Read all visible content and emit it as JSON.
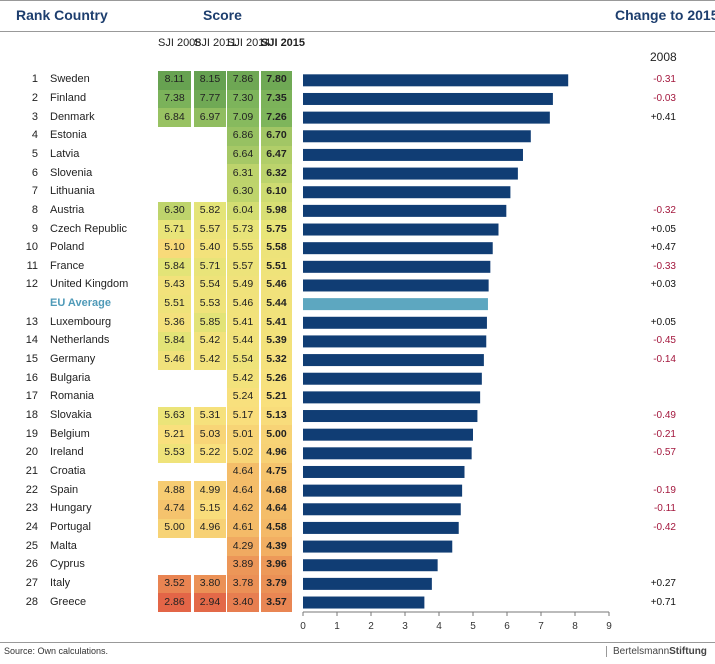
{
  "header": {
    "rank_country": "Rank Country",
    "score": "Score",
    "change": "Change to 2015",
    "change_year": "2008"
  },
  "columns": [
    "SJI 2008",
    "SJI 2011",
    "SJI 2014",
    "SJI 2015"
  ],
  "source": "Source: Own calculations.",
  "logo": {
    "left": "Bertelsmann",
    "right": "Stiftung"
  },
  "colors": {
    "bar": "#103d74",
    "eu_bar": "#5da7c0",
    "negative": "#a3173d",
    "title": "#1d3e6e"
  },
  "chart_data": {
    "type": "bar",
    "orientation": "horizontal",
    "xlim": [
      0,
      9
    ],
    "xticks": [
      0,
      1,
      2,
      3,
      4,
      5,
      6,
      7,
      8,
      9
    ],
    "grid": false,
    "rows": [
      {
        "rank": "1",
        "country": "Sweden",
        "sji2008": "8.11",
        "sji2011": "8.15",
        "sji2014": "7.86",
        "sji2015": "7.80",
        "value": 7.8,
        "change": "-0.31"
      },
      {
        "rank": "2",
        "country": "Finland",
        "sji2008": "7.38",
        "sji2011": "7.77",
        "sji2014": "7.30",
        "sji2015": "7.35",
        "value": 7.35,
        "change": "-0.03"
      },
      {
        "rank": "3",
        "country": "Denmark",
        "sji2008": "6.84",
        "sji2011": "6.97",
        "sji2014": "7.09",
        "sji2015": "7.26",
        "value": 7.26,
        "change": "+0.41"
      },
      {
        "rank": "4",
        "country": "Estonia",
        "sji2008": "",
        "sji2011": "",
        "sji2014": "6.86",
        "sji2015": "6.70",
        "value": 6.7,
        "change": ""
      },
      {
        "rank": "5",
        "country": "Latvia",
        "sji2008": "",
        "sji2011": "",
        "sji2014": "6.64",
        "sji2015": "6.47",
        "value": 6.47,
        "change": ""
      },
      {
        "rank": "6",
        "country": "Slovenia",
        "sji2008": "",
        "sji2011": "",
        "sji2014": "6.31",
        "sji2015": "6.32",
        "value": 6.32,
        "change": ""
      },
      {
        "rank": "7",
        "country": "Lithuania",
        "sji2008": "",
        "sji2011": "",
        "sji2014": "6.30",
        "sji2015": "6.10",
        "value": 6.1,
        "change": ""
      },
      {
        "rank": "8",
        "country": "Austria",
        "sji2008": "6.30",
        "sji2011": "5.82",
        "sji2014": "6.04",
        "sji2015": "5.98",
        "value": 5.98,
        "change": "-0.32"
      },
      {
        "rank": "9",
        "country": "Czech Republic",
        "sji2008": "5.71",
        "sji2011": "5.57",
        "sji2014": "5.73",
        "sji2015": "5.75",
        "value": 5.75,
        "change": "+0.05"
      },
      {
        "rank": "10",
        "country": "Poland",
        "sji2008": "5.10",
        "sji2011": "5.40",
        "sji2014": "5.55",
        "sji2015": "5.58",
        "value": 5.58,
        "change": "+0.47"
      },
      {
        "rank": "11",
        "country": "France",
        "sji2008": "5.84",
        "sji2011": "5.71",
        "sji2014": "5.57",
        "sji2015": "5.51",
        "value": 5.51,
        "change": "-0.33"
      },
      {
        "rank": "12",
        "country": "United Kingdom",
        "sji2008": "5.43",
        "sji2011": "5.54",
        "sji2014": "5.49",
        "sji2015": "5.46",
        "value": 5.46,
        "change": "+0.03"
      },
      {
        "rank": "",
        "country": "EU Average",
        "sji2008": "5.51",
        "sji2011": "5.53",
        "sji2014": "5.46",
        "sji2015": "5.44",
        "value": 5.44,
        "change": "",
        "highlight": true
      },
      {
        "rank": "13",
        "country": "Luxembourg",
        "sji2008": "5.36",
        "sji2011": "5.85",
        "sji2014": "5.41",
        "sji2015": "5.41",
        "value": 5.41,
        "change": "+0.05"
      },
      {
        "rank": "14",
        "country": "Netherlands",
        "sji2008": "5.84",
        "sji2011": "5.42",
        "sji2014": "5.44",
        "sji2015": "5.39",
        "value": 5.39,
        "change": "-0.45"
      },
      {
        "rank": "15",
        "country": "Germany",
        "sji2008": "5.46",
        "sji2011": "5.42",
        "sji2014": "5.54",
        "sji2015": "5.32",
        "value": 5.32,
        "change": "-0.14"
      },
      {
        "rank": "16",
        "country": "Bulgaria",
        "sji2008": "",
        "sji2011": "",
        "sji2014": "5.42",
        "sji2015": "5.26",
        "value": 5.26,
        "change": ""
      },
      {
        "rank": "17",
        "country": "Romania",
        "sji2008": "",
        "sji2011": "",
        "sji2014": "5.24",
        "sji2015": "5.21",
        "value": 5.21,
        "change": ""
      },
      {
        "rank": "18",
        "country": "Slovakia",
        "sji2008": "5.63",
        "sji2011": "5.31",
        "sji2014": "5.17",
        "sji2015": "5.13",
        "value": 5.13,
        "change": "-0.49"
      },
      {
        "rank": "19",
        "country": "Belgium",
        "sji2008": "5.21",
        "sji2011": "5.03",
        "sji2014": "5.01",
        "sji2015": "5.00",
        "value": 5.0,
        "change": "-0.21"
      },
      {
        "rank": "20",
        "country": "Ireland",
        "sji2008": "5.53",
        "sji2011": "5.22",
        "sji2014": "5.02",
        "sji2015": "4.96",
        "value": 4.96,
        "change": "-0.57"
      },
      {
        "rank": "21",
        "country": "Croatia",
        "sji2008": "",
        "sji2011": "",
        "sji2014": "4.64",
        "sji2015": "4.75",
        "value": 4.75,
        "change": ""
      },
      {
        "rank": "22",
        "country": "Spain",
        "sji2008": "4.88",
        "sji2011": "4.99",
        "sji2014": "4.64",
        "sji2015": "4.68",
        "value": 4.68,
        "change": "-0.19"
      },
      {
        "rank": "23",
        "country": "Hungary",
        "sji2008": "4.74",
        "sji2011": "5.15",
        "sji2014": "4.62",
        "sji2015": "4.64",
        "value": 4.64,
        "change": "-0.11"
      },
      {
        "rank": "24",
        "country": "Portugal",
        "sji2008": "5.00",
        "sji2011": "4.96",
        "sji2014": "4.61",
        "sji2015": "4.58",
        "value": 4.58,
        "change": "-0.42"
      },
      {
        "rank": "25",
        "country": "Malta",
        "sji2008": "",
        "sji2011": "",
        "sji2014": "4.29",
        "sji2015": "4.39",
        "value": 4.39,
        "change": ""
      },
      {
        "rank": "26",
        "country": "Cyprus",
        "sji2008": "",
        "sji2011": "",
        "sji2014": "3.89",
        "sji2015": "3.96",
        "value": 3.96,
        "change": ""
      },
      {
        "rank": "27",
        "country": "Italy",
        "sji2008": "3.52",
        "sji2011": "3.80",
        "sji2014": "3.78",
        "sji2015": "3.79",
        "value": 3.79,
        "change": "+0.27"
      },
      {
        "rank": "28",
        "country": "Greece",
        "sji2008": "2.86",
        "sji2011": "2.94",
        "sji2014": "3.40",
        "sji2015": "3.57",
        "value": 3.57,
        "change": "+0.71"
      }
    ]
  }
}
